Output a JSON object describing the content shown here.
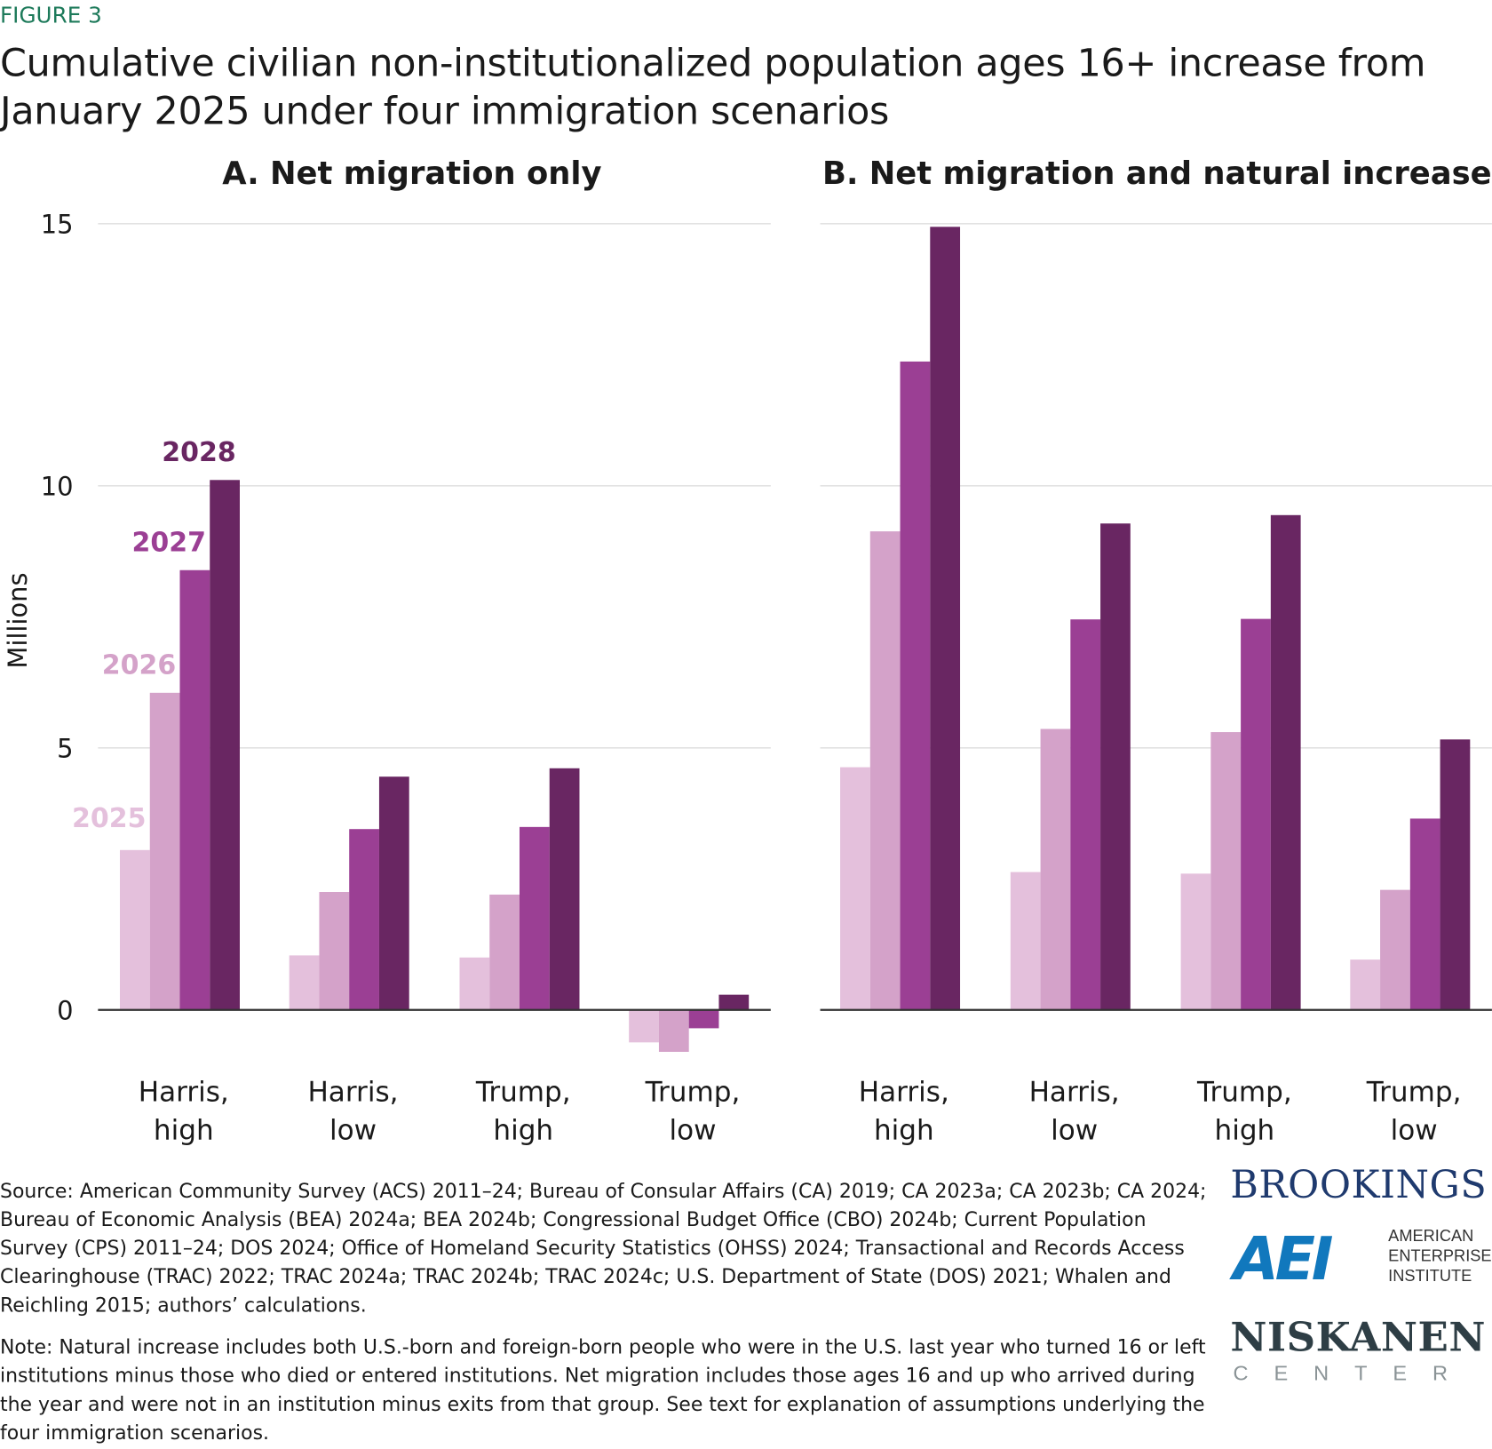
{
  "figure_label": "FIGURE 3",
  "title": "Cumulative civilian non-institutionalized population ages 16+ increase from January 2025 under four immigration scenarios",
  "colors": {
    "2025": "#e4c0dc",
    "2026": "#d4a2c9",
    "2027": "#9b3f94",
    "2028": "#692662",
    "figure_label": "#1d7a5a"
  },
  "chart_data": [
    {
      "type": "bar",
      "title": "A. Net migration only",
      "ylabel": "Millions",
      "ylim": [
        -1,
        15
      ],
      "yticks": [
        "0",
        "5",
        "10",
        "15"
      ],
      "grid": true,
      "categories": [
        [
          "Harris,",
          "high"
        ],
        [
          "Harris,",
          "low"
        ],
        [
          "Trump,",
          "high"
        ],
        [
          "Trump,",
          "low"
        ]
      ],
      "series": [
        {
          "name": "2025",
          "values": [
            3.05,
            1.04,
            1.0,
            -0.62
          ]
        },
        {
          "name": "2026",
          "values": [
            6.05,
            2.25,
            2.2,
            -0.8
          ]
        },
        {
          "name": "2027",
          "values": [
            8.39,
            3.45,
            3.49,
            -0.35
          ]
        },
        {
          "name": "2028",
          "values": [
            10.11,
            4.45,
            4.61,
            0.29
          ]
        }
      ]
    },
    {
      "type": "bar",
      "title": "B. Net migration and natural increase",
      "ylim": [
        -1,
        15
      ],
      "grid": true,
      "categories": [
        [
          "Harris,",
          "high"
        ],
        [
          "Harris,",
          "low"
        ],
        [
          "Trump,",
          "high"
        ],
        [
          "Trump,",
          "low"
        ]
      ],
      "series": [
        {
          "name": "2025",
          "values": [
            4.63,
            2.63,
            2.6,
            0.96
          ]
        },
        {
          "name": "2026",
          "values": [
            9.13,
            5.36,
            5.3,
            2.29
          ]
        },
        {
          "name": "2027",
          "values": [
            12.37,
            7.45,
            7.46,
            3.65
          ]
        },
        {
          "name": "2028",
          "values": [
            14.94,
            9.28,
            9.44,
            5.16
          ]
        }
      ]
    }
  ],
  "source": "Source: American Community Survey (ACS) 2011–24; Bureau of Consular Affairs (CA) 2019; CA 2023a; CA 2023b; CA 2024; Bureau of Economic Analysis (BEA) 2024a; BEA 2024b; Congressional Budget Office (CBO) 2024b; Current Population Survey (CPS) 2011–24; DOS 2024; Office of Homeland Security Statistics (OHSS) 2024; Transactional and Records Access Clearinghouse (TRAC) 2022; TRAC 2024a; TRAC 2024b; TRAC 2024c; U.S. Department of State (DOS) 2021; Whalen and Reichling 2015; authors’ calculations.",
  "note": "Note: Natural increase includes both U.S.-born and foreign-born people who were in the U.S. last year who turned 16 or left institutions minus those who died or entered institutions. Net migration includes those ages 16 and up who arrived during the year and were not in an institution minus exits from that group. See text for explanation of assumptions underlying the four immigration scenarios.",
  "logos": {
    "brookings": "BROOKINGS",
    "aei": "AEI",
    "aei_text": [
      "AMERICAN",
      "ENTERPRISE",
      "INSTITUTE"
    ],
    "niskanen": "NISKANEN",
    "niskanen_sub": "CENTER"
  }
}
